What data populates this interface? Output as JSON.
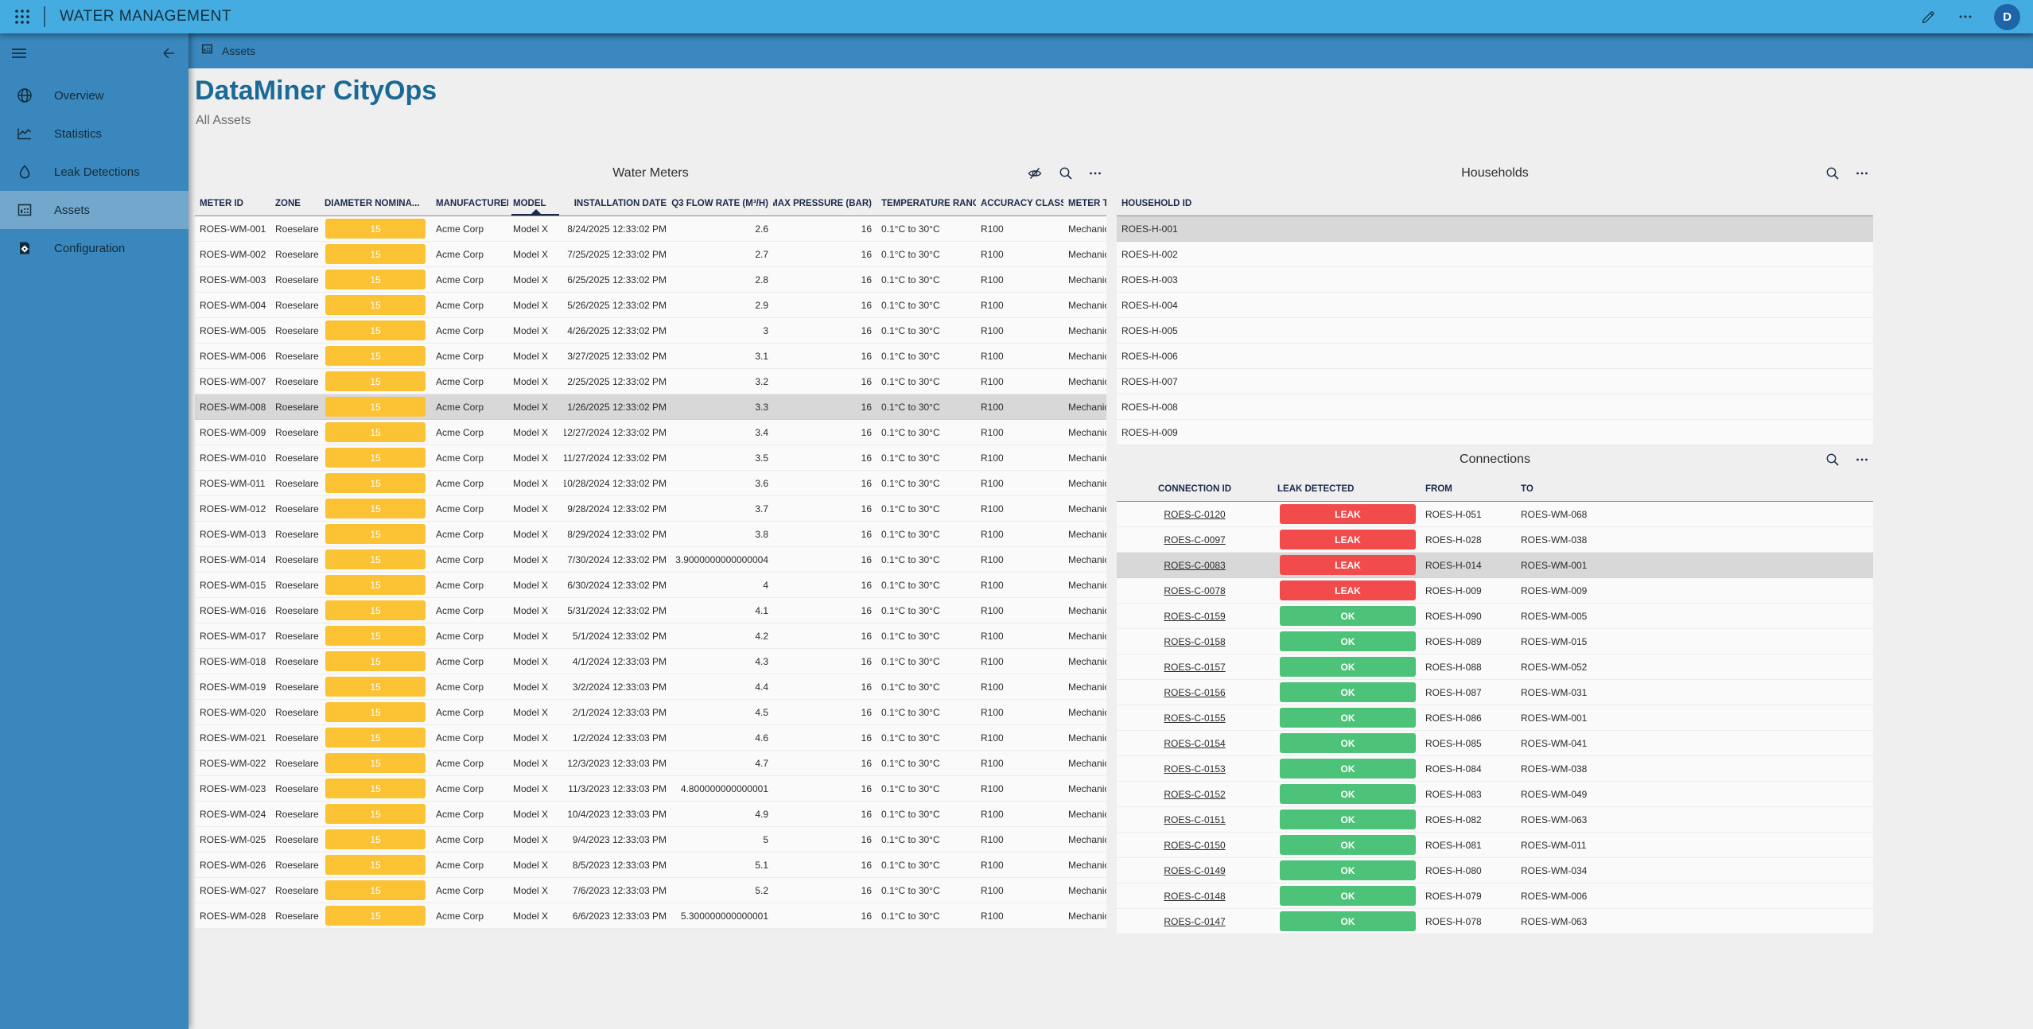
{
  "topbar": {
    "app_title": "WATER MANAGEMENT",
    "icons": [
      "app-launcher-icon",
      "edit-pencil-icon",
      "more-icon"
    ],
    "avatar_initial": "D"
  },
  "sidebar": {
    "icons": [
      "menu-icon",
      "back-arrow-icon"
    ],
    "items": [
      {
        "label": "Overview",
        "icon": "globe-icon"
      },
      {
        "label": "Statistics",
        "icon": "line-chart-icon"
      },
      {
        "label": "Leak Detections",
        "icon": "droplet-icon"
      },
      {
        "label": "Assets",
        "icon": "bar-chart-icon"
      },
      {
        "label": "Configuration",
        "icon": "document-gear-icon"
      }
    ],
    "active_item": "Assets"
  },
  "tabbar": {
    "active_tab": {
      "label": "Assets",
      "icon": "bar-chart-icon"
    }
  },
  "page": {
    "title": "DataMiner CityOps",
    "subtitle": "All Assets"
  },
  "colors": {
    "topbar_blue": "#45ACE1",
    "sidebar_blue": "#3A87BD",
    "sidebar_active_blue": "#73A8CC",
    "tabstrip_blue": "#3A88BF",
    "title_blue": "#1A6A96",
    "avatar_blue": "#1E64A8",
    "badge_yellow": "#FBC234",
    "badge_red": "#F24B4B",
    "badge_green": "#4DC279",
    "selected_row_gray": "#D8D8D8"
  },
  "water_meters": {
    "title": "Water Meters",
    "icons": [
      "visibility-off-icon",
      "search-icon",
      "more-icon"
    ],
    "columns": [
      "METER ID",
      "ZONE",
      "DIAMETER NOMINA...",
      "MANUFACTURER",
      "MODEL",
      "INSTALLATION DATE",
      "Q3 FLOW RATE (M³/H)",
      "MAX PRESSURE (BAR)",
      "TEMPERATURE RANGE",
      "ACCURACY CLASS",
      "METER TYPE"
    ],
    "sorted_column": "MODEL",
    "sort_direction": "ascending",
    "selected_row": "ROES-WM-008",
    "rows": [
      {
        "meter_id": "ROES-WM-001",
        "zone": "Roeselare",
        "diameter_nominal": "15",
        "manufacturer": "Acme Corp",
        "model": "Model X",
        "installation_date": "8/24/2025 12:33:02 PM",
        "q3_flow_rate": "2.6",
        "max_pressure": "16",
        "temperature_range": "0.1°C to 30°C",
        "accuracy_class": "R100",
        "meter_type": "Mechanical"
      },
      {
        "meter_id": "ROES-WM-002",
        "zone": "Roeselare",
        "diameter_nominal": "15",
        "manufacturer": "Acme Corp",
        "model": "Model X",
        "installation_date": "7/25/2025 12:33:02 PM",
        "q3_flow_rate": "2.7",
        "max_pressure": "16",
        "temperature_range": "0.1°C to 30°C",
        "accuracy_class": "R100",
        "meter_type": "Mechanical"
      },
      {
        "meter_id": "ROES-WM-003",
        "zone": "Roeselare",
        "diameter_nominal": "15",
        "manufacturer": "Acme Corp",
        "model": "Model X",
        "installation_date": "6/25/2025 12:33:02 PM",
        "q3_flow_rate": "2.8",
        "max_pressure": "16",
        "temperature_range": "0.1°C to 30°C",
        "accuracy_class": "R100",
        "meter_type": "Mechanical"
      },
      {
        "meter_id": "ROES-WM-004",
        "zone": "Roeselare",
        "diameter_nominal": "15",
        "manufacturer": "Acme Corp",
        "model": "Model X",
        "installation_date": "5/26/2025 12:33:02 PM",
        "q3_flow_rate": "2.9",
        "max_pressure": "16",
        "temperature_range": "0.1°C to 30°C",
        "accuracy_class": "R100",
        "meter_type": "Mechanical"
      },
      {
        "meter_id": "ROES-WM-005",
        "zone": "Roeselare",
        "diameter_nominal": "15",
        "manufacturer": "Acme Corp",
        "model": "Model X",
        "installation_date": "4/26/2025 12:33:02 PM",
        "q3_flow_rate": "3",
        "max_pressure": "16",
        "temperature_range": "0.1°C to 30°C",
        "accuracy_class": "R100",
        "meter_type": "Mechanical"
      },
      {
        "meter_id": "ROES-WM-006",
        "zone": "Roeselare",
        "diameter_nominal": "15",
        "manufacturer": "Acme Corp",
        "model": "Model X",
        "installation_date": "3/27/2025 12:33:02 PM",
        "q3_flow_rate": "3.1",
        "max_pressure": "16",
        "temperature_range": "0.1°C to 30°C",
        "accuracy_class": "R100",
        "meter_type": "Mechanical"
      },
      {
        "meter_id": "ROES-WM-007",
        "zone": "Roeselare",
        "diameter_nominal": "15",
        "manufacturer": "Acme Corp",
        "model": "Model X",
        "installation_date": "2/25/2025 12:33:02 PM",
        "q3_flow_rate": "3.2",
        "max_pressure": "16",
        "temperature_range": "0.1°C to 30°C",
        "accuracy_class": "R100",
        "meter_type": "Mechanical"
      },
      {
        "meter_id": "ROES-WM-008",
        "zone": "Roeselare",
        "diameter_nominal": "15",
        "manufacturer": "Acme Corp",
        "model": "Model X",
        "installation_date": "1/26/2025 12:33:02 PM",
        "q3_flow_rate": "3.3",
        "max_pressure": "16",
        "temperature_range": "0.1°C to 30°C",
        "accuracy_class": "R100",
        "meter_type": "Mechanical"
      },
      {
        "meter_id": "ROES-WM-009",
        "zone": "Roeselare",
        "diameter_nominal": "15",
        "manufacturer": "Acme Corp",
        "model": "Model X",
        "installation_date": "12/27/2024 12:33:02 PM",
        "q3_flow_rate": "3.4",
        "max_pressure": "16",
        "temperature_range": "0.1°C to 30°C",
        "accuracy_class": "R100",
        "meter_type": "Mechanical"
      },
      {
        "meter_id": "ROES-WM-010",
        "zone": "Roeselare",
        "diameter_nominal": "15",
        "manufacturer": "Acme Corp",
        "model": "Model X",
        "installation_date": "11/27/2024 12:33:02 PM",
        "q3_flow_rate": "3.5",
        "max_pressure": "16",
        "temperature_range": "0.1°C to 30°C",
        "accuracy_class": "R100",
        "meter_type": "Mechanical"
      },
      {
        "meter_id": "ROES-WM-011",
        "zone": "Roeselare",
        "diameter_nominal": "15",
        "manufacturer": "Acme Corp",
        "model": "Model X",
        "installation_date": "10/28/2024 12:33:02 PM",
        "q3_flow_rate": "3.6",
        "max_pressure": "16",
        "temperature_range": "0.1°C to 30°C",
        "accuracy_class": "R100",
        "meter_type": "Mechanical"
      },
      {
        "meter_id": "ROES-WM-012",
        "zone": "Roeselare",
        "diameter_nominal": "15",
        "manufacturer": "Acme Corp",
        "model": "Model X",
        "installation_date": "9/28/2024 12:33:02 PM",
        "q3_flow_rate": "3.7",
        "max_pressure": "16",
        "temperature_range": "0.1°C to 30°C",
        "accuracy_class": "R100",
        "meter_type": "Mechanical"
      },
      {
        "meter_id": "ROES-WM-013",
        "zone": "Roeselare",
        "diameter_nominal": "15",
        "manufacturer": "Acme Corp",
        "model": "Model X",
        "installation_date": "8/29/2024 12:33:02 PM",
        "q3_flow_rate": "3.8",
        "max_pressure": "16",
        "temperature_range": "0.1°C to 30°C",
        "accuracy_class": "R100",
        "meter_type": "Mechanical"
      },
      {
        "meter_id": "ROES-WM-014",
        "zone": "Roeselare",
        "diameter_nominal": "15",
        "manufacturer": "Acme Corp",
        "model": "Model X",
        "installation_date": "7/30/2024 12:33:02 PM",
        "q3_flow_rate": "3.9000000000000004",
        "max_pressure": "16",
        "temperature_range": "0.1°C to 30°C",
        "accuracy_class": "R100",
        "meter_type": "Mechanical"
      },
      {
        "meter_id": "ROES-WM-015",
        "zone": "Roeselare",
        "diameter_nominal": "15",
        "manufacturer": "Acme Corp",
        "model": "Model X",
        "installation_date": "6/30/2024 12:33:02 PM",
        "q3_flow_rate": "4",
        "max_pressure": "16",
        "temperature_range": "0.1°C to 30°C",
        "accuracy_class": "R100",
        "meter_type": "Mechanical"
      },
      {
        "meter_id": "ROES-WM-016",
        "zone": "Roeselare",
        "diameter_nominal": "15",
        "manufacturer": "Acme Corp",
        "model": "Model X",
        "installation_date": "5/31/2024 12:33:02 PM",
        "q3_flow_rate": "4.1",
        "max_pressure": "16",
        "temperature_range": "0.1°C to 30°C",
        "accuracy_class": "R100",
        "meter_type": "Mechanical"
      },
      {
        "meter_id": "ROES-WM-017",
        "zone": "Roeselare",
        "diameter_nominal": "15",
        "manufacturer": "Acme Corp",
        "model": "Model X",
        "installation_date": "5/1/2024 12:33:02 PM",
        "q3_flow_rate": "4.2",
        "max_pressure": "16",
        "temperature_range": "0.1°C to 30°C",
        "accuracy_class": "R100",
        "meter_type": "Mechanical"
      },
      {
        "meter_id": "ROES-WM-018",
        "zone": "Roeselare",
        "diameter_nominal": "15",
        "manufacturer": "Acme Corp",
        "model": "Model X",
        "installation_date": "4/1/2024 12:33:03 PM",
        "q3_flow_rate": "4.3",
        "max_pressure": "16",
        "temperature_range": "0.1°C to 30°C",
        "accuracy_class": "R100",
        "meter_type": "Mechanical"
      },
      {
        "meter_id": "ROES-WM-019",
        "zone": "Roeselare",
        "diameter_nominal": "15",
        "manufacturer": "Acme Corp",
        "model": "Model X",
        "installation_date": "3/2/2024 12:33:03 PM",
        "q3_flow_rate": "4.4",
        "max_pressure": "16",
        "temperature_range": "0.1°C to 30°C",
        "accuracy_class": "R100",
        "meter_type": "Mechanical"
      },
      {
        "meter_id": "ROES-WM-020",
        "zone": "Roeselare",
        "diameter_nominal": "15",
        "manufacturer": "Acme Corp",
        "model": "Model X",
        "installation_date": "2/1/2024 12:33:03 PM",
        "q3_flow_rate": "4.5",
        "max_pressure": "16",
        "temperature_range": "0.1°C to 30°C",
        "accuracy_class": "R100",
        "meter_type": "Mechanical"
      },
      {
        "meter_id": "ROES-WM-021",
        "zone": "Roeselare",
        "diameter_nominal": "15",
        "manufacturer": "Acme Corp",
        "model": "Model X",
        "installation_date": "1/2/2024 12:33:03 PM",
        "q3_flow_rate": "4.6",
        "max_pressure": "16",
        "temperature_range": "0.1°C to 30°C",
        "accuracy_class": "R100",
        "meter_type": "Mechanical"
      },
      {
        "meter_id": "ROES-WM-022",
        "zone": "Roeselare",
        "diameter_nominal": "15",
        "manufacturer": "Acme Corp",
        "model": "Model X",
        "installation_date": "12/3/2023 12:33:03 PM",
        "q3_flow_rate": "4.7",
        "max_pressure": "16",
        "temperature_range": "0.1°C to 30°C",
        "accuracy_class": "R100",
        "meter_type": "Mechanical"
      },
      {
        "meter_id": "ROES-WM-023",
        "zone": "Roeselare",
        "diameter_nominal": "15",
        "manufacturer": "Acme Corp",
        "model": "Model X",
        "installation_date": "11/3/2023 12:33:03 PM",
        "q3_flow_rate": "4.800000000000001",
        "max_pressure": "16",
        "temperature_range": "0.1°C to 30°C",
        "accuracy_class": "R100",
        "meter_type": "Mechanical"
      },
      {
        "meter_id": "ROES-WM-024",
        "zone": "Roeselare",
        "diameter_nominal": "15",
        "manufacturer": "Acme Corp",
        "model": "Model X",
        "installation_date": "10/4/2023 12:33:03 PM",
        "q3_flow_rate": "4.9",
        "max_pressure": "16",
        "temperature_range": "0.1°C to 30°C",
        "accuracy_class": "R100",
        "meter_type": "Mechanical"
      },
      {
        "meter_id": "ROES-WM-025",
        "zone": "Roeselare",
        "diameter_nominal": "15",
        "manufacturer": "Acme Corp",
        "model": "Model X",
        "installation_date": "9/4/2023 12:33:03 PM",
        "q3_flow_rate": "5",
        "max_pressure": "16",
        "temperature_range": "0.1°C to 30°C",
        "accuracy_class": "R100",
        "meter_type": "Mechanical"
      },
      {
        "meter_id": "ROES-WM-026",
        "zone": "Roeselare",
        "diameter_nominal": "15",
        "manufacturer": "Acme Corp",
        "model": "Model X",
        "installation_date": "8/5/2023 12:33:03 PM",
        "q3_flow_rate": "5.1",
        "max_pressure": "16",
        "temperature_range": "0.1°C to 30°C",
        "accuracy_class": "R100",
        "meter_type": "Mechanical"
      },
      {
        "meter_id": "ROES-WM-027",
        "zone": "Roeselare",
        "diameter_nominal": "15",
        "manufacturer": "Acme Corp",
        "model": "Model X",
        "installation_date": "7/6/2023 12:33:03 PM",
        "q3_flow_rate": "5.2",
        "max_pressure": "16",
        "temperature_range": "0.1°C to 30°C",
        "accuracy_class": "R100",
        "meter_type": "Mechanical"
      },
      {
        "meter_id": "ROES-WM-028",
        "zone": "Roeselare",
        "diameter_nominal": "15",
        "manufacturer": "Acme Corp",
        "model": "Model X",
        "installation_date": "6/6/2023 12:33:03 PM",
        "q3_flow_rate": "5.300000000000001",
        "max_pressure": "16",
        "temperature_range": "0.1°C to 30°C",
        "accuracy_class": "R100",
        "meter_type": "Mechanical"
      }
    ]
  },
  "households": {
    "title": "Households",
    "icons": [
      "search-icon",
      "more-icon"
    ],
    "columns": [
      "HOUSEHOLD ID"
    ],
    "selected_row": "ROES-H-001",
    "rows": [
      {
        "household_id": "ROES-H-001"
      },
      {
        "household_id": "ROES-H-002"
      },
      {
        "household_id": "ROES-H-003"
      },
      {
        "household_id": "ROES-H-004"
      },
      {
        "household_id": "ROES-H-005"
      },
      {
        "household_id": "ROES-H-006"
      },
      {
        "household_id": "ROES-H-007"
      },
      {
        "household_id": "ROES-H-008"
      },
      {
        "household_id": "ROES-H-009"
      }
    ]
  },
  "connections": {
    "title": "Connections",
    "icons": [
      "search-icon",
      "more-icon"
    ],
    "columns": [
      "CONNECTION ID",
      "LEAK DETECTED",
      "FROM",
      "TO"
    ],
    "selected_row": "ROES-C-0083",
    "rows": [
      {
        "connection_id": "ROES-C-0120",
        "leak_detected": "LEAK",
        "from": "ROES-H-051",
        "to": "ROES-WM-068"
      },
      {
        "connection_id": "ROES-C-0097",
        "leak_detected": "LEAK",
        "from": "ROES-H-028",
        "to": "ROES-WM-038"
      },
      {
        "connection_id": "ROES-C-0083",
        "leak_detected": "LEAK",
        "from": "ROES-H-014",
        "to": "ROES-WM-001"
      },
      {
        "connection_id": "ROES-C-0078",
        "leak_detected": "LEAK",
        "from": "ROES-H-009",
        "to": "ROES-WM-009"
      },
      {
        "connection_id": "ROES-C-0159",
        "leak_detected": "OK",
        "from": "ROES-H-090",
        "to": "ROES-WM-005"
      },
      {
        "connection_id": "ROES-C-0158",
        "leak_detected": "OK",
        "from": "ROES-H-089",
        "to": "ROES-WM-015"
      },
      {
        "connection_id": "ROES-C-0157",
        "leak_detected": "OK",
        "from": "ROES-H-088",
        "to": "ROES-WM-052"
      },
      {
        "connection_id": "ROES-C-0156",
        "leak_detected": "OK",
        "from": "ROES-H-087",
        "to": "ROES-WM-031"
      },
      {
        "connection_id": "ROES-C-0155",
        "leak_detected": "OK",
        "from": "ROES-H-086",
        "to": "ROES-WM-001"
      },
      {
        "connection_id": "ROES-C-0154",
        "leak_detected": "OK",
        "from": "ROES-H-085",
        "to": "ROES-WM-041"
      },
      {
        "connection_id": "ROES-C-0153",
        "leak_detected": "OK",
        "from": "ROES-H-084",
        "to": "ROES-WM-038"
      },
      {
        "connection_id": "ROES-C-0152",
        "leak_detected": "OK",
        "from": "ROES-H-083",
        "to": "ROES-WM-049"
      },
      {
        "connection_id": "ROES-C-0151",
        "leak_detected": "OK",
        "from": "ROES-H-082",
        "to": "ROES-WM-063"
      },
      {
        "connection_id": "ROES-C-0150",
        "leak_detected": "OK",
        "from": "ROES-H-081",
        "to": "ROES-WM-011"
      },
      {
        "connection_id": "ROES-C-0149",
        "leak_detected": "OK",
        "from": "ROES-H-080",
        "to": "ROES-WM-034"
      },
      {
        "connection_id": "ROES-C-0148",
        "leak_detected": "OK",
        "from": "ROES-H-079",
        "to": "ROES-WM-006"
      },
      {
        "connection_id": "ROES-C-0147",
        "leak_detected": "OK",
        "from": "ROES-H-078",
        "to": "ROES-WM-063"
      }
    ]
  }
}
